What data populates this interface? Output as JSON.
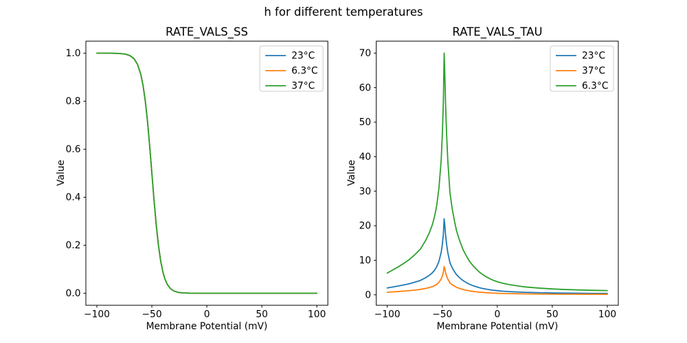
{
  "figure": {
    "title": "h for different temperatures",
    "background": "#ffffff",
    "text_color": "#000000",
    "spine_color": "#000000",
    "legend_edge_color": "#cccccc"
  },
  "chart_data": [
    {
      "type": "line",
      "title": "RATE_VALS_SS",
      "xlabel": "Membrane Potential (mV)",
      "ylabel": "Value",
      "xlim": [
        -110,
        110
      ],
      "ylim": [
        -0.05,
        1.05
      ],
      "xticks": [
        -100,
        -50,
        0,
        50,
        100
      ],
      "xtick_labels": [
        "−100",
        "−50",
        "0",
        "50",
        "100"
      ],
      "yticks": [
        0.0,
        0.2,
        0.4,
        0.6,
        0.8,
        1.0
      ],
      "ytick_labels": [
        "0.0",
        "0.2",
        "0.4",
        "0.6",
        "0.8",
        "1.0"
      ],
      "grid": false,
      "legend_position": "upper right",
      "x": [
        -100,
        -90,
        -80,
        -74,
        -70,
        -66,
        -63,
        -60,
        -58,
        -56,
        -54,
        -52,
        -50,
        -48,
        -46,
        -44,
        -42,
        -40,
        -38,
        -36,
        -33,
        -30,
        -26,
        -22,
        -15,
        0,
        25,
        50,
        75,
        100
      ],
      "series": [
        {
          "name": "23°C",
          "color": "#1f77b4",
          "values": [
            1.0,
            1.0,
            0.999,
            0.996,
            0.99,
            0.976,
            0.953,
            0.911,
            0.865,
            0.801,
            0.718,
            0.614,
            0.5,
            0.386,
            0.283,
            0.199,
            0.135,
            0.089,
            0.058,
            0.037,
            0.019,
            0.0095,
            0.0037,
            0.0015,
            0.0003,
            0.0,
            0.0,
            0.0,
            0.0,
            0.0
          ]
        },
        {
          "name": "6.3°C",
          "color": "#ff7f0e",
          "values": [
            1.0,
            1.0,
            0.999,
            0.996,
            0.99,
            0.976,
            0.953,
            0.911,
            0.865,
            0.801,
            0.718,
            0.614,
            0.5,
            0.386,
            0.283,
            0.199,
            0.135,
            0.089,
            0.058,
            0.037,
            0.019,
            0.0095,
            0.0037,
            0.0015,
            0.0003,
            0.0,
            0.0,
            0.0,
            0.0,
            0.0
          ]
        },
        {
          "name": "37°C",
          "color": "#2ca02c",
          "values": [
            1.0,
            1.0,
            0.999,
            0.996,
            0.99,
            0.976,
            0.953,
            0.911,
            0.865,
            0.801,
            0.718,
            0.614,
            0.5,
            0.386,
            0.283,
            0.199,
            0.135,
            0.089,
            0.058,
            0.037,
            0.019,
            0.0095,
            0.0037,
            0.0015,
            0.0003,
            0.0,
            0.0,
            0.0,
            0.0,
            0.0
          ]
        }
      ]
    },
    {
      "type": "line",
      "title": "RATE_VALS_TAU",
      "xlabel": "Membrane Potential (mV)",
      "ylabel": "Value",
      "xlim": [
        -110,
        110
      ],
      "ylim": [
        -3.03,
        73.45
      ],
      "xticks": [
        -100,
        -50,
        0,
        50,
        100
      ],
      "xtick_labels": [
        "−100",
        "−50",
        "0",
        "50",
        "100"
      ],
      "yticks": [
        0,
        10,
        20,
        30,
        40,
        50,
        60,
        70
      ],
      "ytick_labels": [
        "0",
        "10",
        "20",
        "30",
        "40",
        "50",
        "60",
        "70"
      ],
      "grid": false,
      "legend_position": "upper right",
      "x": [
        -100,
        -95,
        -90,
        -85,
        -80,
        -75,
        -70,
        -65,
        -62,
        -59,
        -57,
        -55,
        -53,
        -51,
        -50,
        -49,
        -48.3,
        -47.7,
        -47,
        -46,
        -45,
        -43,
        -41,
        -39,
        -37,
        -34,
        -31,
        -28,
        -25,
        -22,
        -19,
        -16,
        -13,
        -10,
        -7,
        -4,
        -1,
        2,
        5,
        10,
        15,
        20,
        25,
        30,
        40,
        50,
        60,
        70,
        80,
        90,
        100
      ],
      "series": [
        {
          "name": "23°C",
          "color": "#1f77b4",
          "values": [
            1.98,
            2.26,
            2.55,
            2.86,
            3.21,
            3.65,
            4.15,
            4.97,
            5.6,
            6.38,
            7.14,
            8.18,
            9.75,
            12.26,
            14.47,
            17.61,
            22.01,
            20.13,
            17.3,
            14.47,
            12.26,
            9.28,
            7.86,
            6.76,
            5.82,
            4.87,
            4.09,
            3.52,
            3.02,
            2.64,
            2.33,
            2.04,
            1.82,
            1.64,
            1.48,
            1.34,
            1.23,
            1.13,
            1.05,
            0.94,
            0.86,
            0.79,
            0.72,
            0.68,
            0.6,
            0.53,
            0.49,
            0.46,
            0.42,
            0.4,
            0.38
          ]
        },
        {
          "name": "37°C",
          "color": "#ff7f0e",
          "values": [
            0.74,
            0.84,
            0.95,
            1.07,
            1.19,
            1.36,
            1.55,
            1.85,
            2.08,
            2.38,
            2.66,
            3.04,
            3.63,
            4.57,
            5.39,
            6.56,
            8.2,
            7.49,
            6.44,
            5.39,
            4.57,
            3.45,
            2.93,
            2.52,
            2.17,
            1.81,
            1.52,
            1.31,
            1.12,
            0.98,
            0.87,
            0.76,
            0.68,
            0.61,
            0.55,
            0.5,
            0.46,
            0.42,
            0.39,
            0.35,
            0.32,
            0.29,
            0.27,
            0.25,
            0.22,
            0.2,
            0.18,
            0.17,
            0.16,
            0.15,
            0.14
          ]
        },
        {
          "name": "6.3°C",
          "color": "#2ca02c",
          "values": [
            6.3,
            7.2,
            8.1,
            9.1,
            10.2,
            11.6,
            13.2,
            15.8,
            17.8,
            20.3,
            22.7,
            26.0,
            31.0,
            39.0,
            46.0,
            56.0,
            70.0,
            64.0,
            55.0,
            46.0,
            39.0,
            29.5,
            25.0,
            21.5,
            18.5,
            15.5,
            13.0,
            11.2,
            9.6,
            8.4,
            7.4,
            6.5,
            5.8,
            5.2,
            4.7,
            4.25,
            3.9,
            3.6,
            3.35,
            3.0,
            2.75,
            2.5,
            2.3,
            2.15,
            1.9,
            1.7,
            1.55,
            1.45,
            1.35,
            1.28,
            1.22
          ]
        }
      ]
    }
  ]
}
